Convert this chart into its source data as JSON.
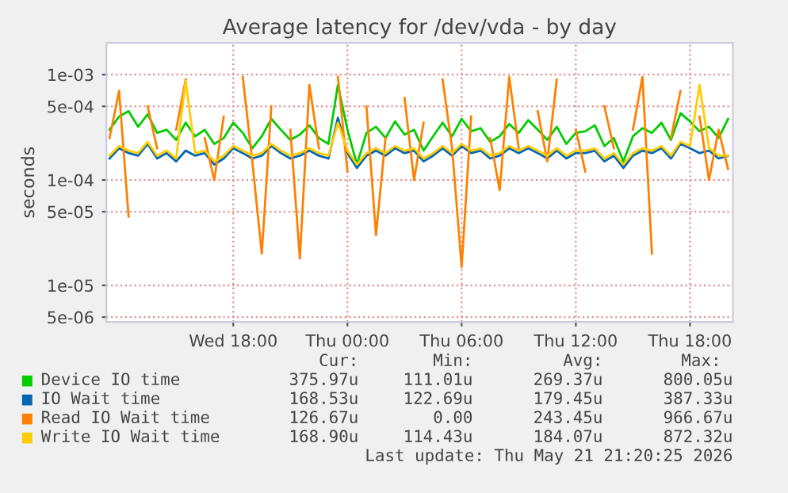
{
  "chart_data": {
    "type": "line",
    "title": "Average latency for /dev/vda - by day",
    "ylabel": "seconds",
    "log": "y",
    "x": [
      "2026-05-20T11:30",
      "2026-05-20T12:00",
      "2026-05-20T12:30",
      "2026-05-20T13:00",
      "2026-05-20T13:30",
      "2026-05-20T14:00",
      "2026-05-20T14:30",
      "2026-05-20T15:00",
      "2026-05-20T15:30",
      "2026-05-20T16:00",
      "2026-05-20T16:30",
      "2026-05-20T17:00",
      "2026-05-20T17:30",
      "2026-05-20T18:00",
      "2026-05-20T18:30",
      "2026-05-20T19:00",
      "2026-05-20T19:30",
      "2026-05-20T20:00",
      "2026-05-20T20:30",
      "2026-05-20T21:00",
      "2026-05-20T21:30",
      "2026-05-20T22:00",
      "2026-05-20T22:30",
      "2026-05-20T23:00",
      "2026-05-20T23:30",
      "2026-05-21T00:00",
      "2026-05-21T00:30",
      "2026-05-21T01:00",
      "2026-05-21T01:30",
      "2026-05-21T02:00",
      "2026-05-21T02:30",
      "2026-05-21T03:00",
      "2026-05-21T03:30",
      "2026-05-21T04:00",
      "2026-05-21T04:30",
      "2026-05-21T05:00",
      "2026-05-21T05:30",
      "2026-05-21T06:00",
      "2026-05-21T06:30",
      "2026-05-21T07:00",
      "2026-05-21T07:30",
      "2026-05-21T08:00",
      "2026-05-21T08:30",
      "2026-05-21T09:00",
      "2026-05-21T09:30",
      "2026-05-21T10:00",
      "2026-05-21T10:30",
      "2026-05-21T11:00",
      "2026-05-21T11:30",
      "2026-05-21T12:00",
      "2026-05-21T12:30",
      "2026-05-21T13:00",
      "2026-05-21T13:30",
      "2026-05-21T14:00",
      "2026-05-21T14:30",
      "2026-05-21T15:00",
      "2026-05-21T15:30",
      "2026-05-21T16:00",
      "2026-05-21T16:30",
      "2026-05-21T17:00",
      "2026-05-21T17:30",
      "2026-05-21T18:00",
      "2026-05-21T18:30",
      "2026-05-21T19:00",
      "2026-05-21T19:30",
      "2026-05-21T20:00"
    ],
    "xlim": [
      "2026-05-20T11:20",
      "2026-05-21T20:15"
    ],
    "xticks": [
      {
        "value": "2026-05-20T18:00",
        "label": "Wed 18:00"
      },
      {
        "value": "2026-05-21T00:00",
        "label": "Thu 00:00"
      },
      {
        "value": "2026-05-21T06:00",
        "label": "Thu 06:00"
      },
      {
        "value": "2026-05-21T12:00",
        "label": "Thu 12:00"
      },
      {
        "value": "2026-05-21T18:00",
        "label": "Thu 18:00"
      }
    ],
    "ylim": [
      4.5e-06,
      0.002
    ],
    "yticks": [
      {
        "value": 5e-06,
        "label": "5e-06"
      },
      {
        "value": 1e-05,
        "label": "1e-05"
      },
      {
        "value": 5e-05,
        "label": "5e-05"
      },
      {
        "value": 0.0001,
        "label": "1e-04"
      },
      {
        "value": 0.0005,
        "label": "5e-04"
      },
      {
        "value": 0.001,
        "label": "1e-03"
      }
    ],
    "grid": true,
    "legend": "bottom",
    "series": [
      {
        "name": "Device IO time",
        "color": "#00cc00",
        "values": [
          0.0003,
          0.0004,
          0.00045,
          0.00032,
          0.00042,
          0.00028,
          0.0003,
          0.00024,
          0.00035,
          0.00026,
          0.0003,
          0.00022,
          0.00025,
          0.00035,
          0.00028,
          0.0002,
          0.00026,
          0.00038,
          0.0003,
          0.00024,
          0.00027,
          0.00033,
          0.00025,
          0.00022,
          0.0008,
          0.0003,
          0.00014,
          0.00028,
          0.00032,
          0.00025,
          0.00036,
          0.00027,
          0.0003,
          0.00019,
          0.00026,
          0.00035,
          0.00026,
          0.00038,
          0.00029,
          0.00031,
          0.00023,
          0.00026,
          0.00034,
          0.00028,
          0.00037,
          0.0003,
          0.00024,
          0.00032,
          0.00022,
          0.00028,
          0.00029,
          0.00033,
          0.00021,
          0.00025,
          0.00015,
          0.00026,
          0.00031,
          0.00028,
          0.00035,
          0.00024,
          0.00043,
          0.00036,
          0.00029,
          0.00032,
          0.00025,
          0.00038
        ]
      },
      {
        "name": "IO Wait time",
        "color": "#0066b3",
        "values": [
          0.00016,
          0.0002,
          0.00018,
          0.00017,
          0.00022,
          0.00016,
          0.00018,
          0.00015,
          0.00019,
          0.00017,
          0.00018,
          0.00014,
          0.00016,
          0.0002,
          0.00018,
          0.00016,
          0.00017,
          0.00021,
          0.00018,
          0.00016,
          0.00017,
          0.00019,
          0.00017,
          0.00016,
          0.00039,
          0.00018,
          0.00013,
          0.00017,
          0.00019,
          0.00017,
          0.0002,
          0.00018,
          0.00019,
          0.00015,
          0.00017,
          0.0002,
          0.00017,
          0.00021,
          0.00018,
          0.00019,
          0.00016,
          0.00017,
          0.0002,
          0.00018,
          0.0002,
          0.00018,
          0.00016,
          0.00019,
          0.00016,
          0.00018,
          0.00018,
          0.00019,
          0.00015,
          0.00017,
          0.00013,
          0.00017,
          0.00019,
          0.00018,
          0.0002,
          0.00016,
          0.00022,
          0.0002,
          0.00018,
          0.00019,
          0.00016,
          0.00017
        ]
      },
      {
        "name": "Read IO Wait time",
        "color": "#ff8000",
        "values": [
          0.00025,
          0.0007,
          4.5e-05,
          null,
          0.0005,
          0.0002,
          null,
          0.0003,
          0.0009,
          null,
          0.00025,
          0.0001,
          0.0004,
          null,
          0.00095,
          0.00015,
          2e-05,
          0.0005,
          null,
          0.0003,
          1.8e-05,
          0.0008,
          0.0002,
          null,
          0.00095,
          0.00012,
          null,
          0.0005,
          3e-05,
          0.00025,
          null,
          0.0006,
          0.0001,
          0.00035,
          null,
          0.0009,
          0.0002,
          1.5e-05,
          0.0004,
          null,
          0.00025,
          8e-05,
          0.00095,
          0.0002,
          null,
          0.00045,
          0.00015,
          0.0009,
          null,
          0.0003,
          0.00012,
          null,
          0.0005,
          0.0002,
          null,
          0.0003,
          0.00095,
          2e-05,
          null,
          0.00025,
          0.0007,
          null,
          0.0004,
          0.0001,
          0.0003,
          0.000127
        ]
      },
      {
        "name": "Write IO Wait time",
        "color": "#ffcc00",
        "values": [
          0.00017,
          0.00021,
          0.00019,
          0.00018,
          0.00023,
          0.00017,
          0.00019,
          0.00016,
          0.00087,
          0.00018,
          0.00019,
          0.00015,
          0.00017,
          0.00021,
          0.00019,
          0.00017,
          0.00018,
          0.00022,
          0.00019,
          0.00017,
          0.00018,
          0.0002,
          0.00018,
          0.00017,
          0.00035,
          0.00019,
          0.00014,
          0.00018,
          0.0002,
          0.00018,
          0.00021,
          0.00019,
          0.0002,
          0.00016,
          0.00018,
          0.00021,
          0.00018,
          0.00022,
          0.00019,
          0.0002,
          0.00017,
          0.00018,
          0.00021,
          0.00019,
          0.00021,
          0.00019,
          0.00017,
          0.0002,
          0.00017,
          0.00019,
          0.00019,
          0.0002,
          0.00016,
          0.00018,
          0.00014,
          0.00018,
          0.0002,
          0.00019,
          0.00021,
          0.00017,
          0.00023,
          0.00021,
          0.0008,
          0.0002,
          0.00017,
          0.00017
        ]
      }
    ],
    "annotations": [
      "Cur:",
      "Min:",
      "Avg:",
      "Max:",
      "375.97u",
      "111.01u",
      "269.37u",
      "800.05u",
      "168.53u",
      "122.69u",
      "179.45u",
      "387.33u",
      "126.67u",
      "0.00",
      "243.45u",
      "966.67u",
      "168.90u",
      "114.43u",
      "184.07u",
      "872.32u",
      "Last update: Thu May 21 21:20:25 2026"
    ]
  }
}
